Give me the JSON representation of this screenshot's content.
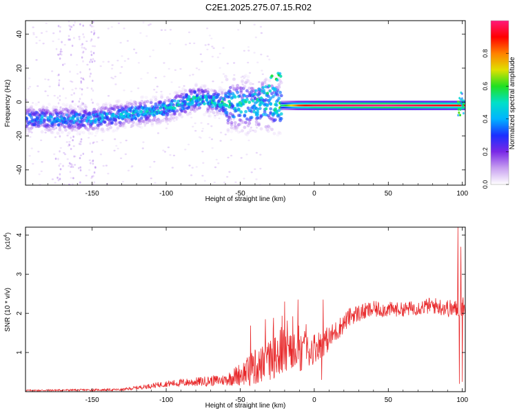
{
  "title": "C2E1.2025.275.07.15.R02",
  "chart_data": [
    {
      "type": "heatmap",
      "name": "spectrogram",
      "xlabel": "Height of straight line (km)",
      "ylabel": "Frequency (Hz)",
      "xlim": [
        -195,
        102
      ],
      "ylim": [
        -49,
        48
      ],
      "xticks": [
        -150,
        -100,
        -50,
        0,
        50,
        100
      ],
      "xtick_labels": [
        "-150",
        "-100",
        "-50",
        "0",
        "50",
        "100"
      ],
      "yticks": [
        -40,
        -20,
        0,
        20,
        40
      ],
      "ytick_labels": [
        "-40",
        "-20",
        "0",
        "20",
        "40"
      ],
      "ridge": [
        {
          "x": -195,
          "y": -10,
          "amp": 0.35
        },
        {
          "x": -150,
          "y": -10,
          "amp": 0.38
        },
        {
          "x": -100,
          "y": -4,
          "amp": 0.42
        },
        {
          "x": -80,
          "y": 2,
          "amp": 0.45
        },
        {
          "x": -50,
          "y": -2,
          "amp": 0.45
        },
        {
          "x": -30,
          "y": -2,
          "amp": 0.42
        },
        {
          "x": -20,
          "y": -2,
          "amp": 0.55
        },
        {
          "x": -10,
          "y": -2,
          "amp": 0.85
        },
        {
          "x": 0,
          "y": -2,
          "amp": 0.95
        },
        {
          "x": 50,
          "y": -2,
          "amp": 1.0
        },
        {
          "x": 98,
          "y": -2,
          "amp": 0.9
        }
      ],
      "colorbar": {
        "label": "Normalized spectral amplitude",
        "range": [
          0.0,
          1.0
        ],
        "ticks": [
          "0.0",
          "0.2",
          "0.4",
          "0.6",
          "0.8"
        ],
        "colors": [
          "#ffffff",
          "#c8a0f0",
          "#7a28e6",
          "#1a2fff",
          "#00b4ff",
          "#00e0c8",
          "#20e020",
          "#e0e000",
          "#ff8000",
          "#ff0000",
          "#ff1a7a"
        ]
      }
    },
    {
      "type": "line",
      "name": "snr",
      "xlabel": "Height of straight line (km)",
      "ylabel": "SNR (10 * v/v)",
      "multiplier": "(x10",
      "multiplier_exp": "4",
      "multiplier_close": ")",
      "xlim": [
        -195,
        102
      ],
      "ylim": [
        0,
        4.2
      ],
      "xticks": [
        -150,
        -100,
        -50,
        0,
        50,
        100
      ],
      "xtick_labels": [
        "-150",
        "-100",
        "-50",
        "0",
        "50",
        "100"
      ],
      "yticks": [
        1,
        2,
        3,
        4
      ],
      "ytick_labels": [
        "1",
        "2",
        "3",
        "4"
      ],
      "color": "#e8282a",
      "trend": [
        {
          "x": -195,
          "y": 0.03
        },
        {
          "x": -130,
          "y": 0.05
        },
        {
          "x": -100,
          "y": 0.2
        },
        {
          "x": -60,
          "y": 0.3
        },
        {
          "x": -40,
          "y": 0.6
        },
        {
          "x": -25,
          "y": 0.9
        },
        {
          "x": -10,
          "y": 0.9
        },
        {
          "x": 10,
          "y": 1.35
        },
        {
          "x": 25,
          "y": 1.95
        },
        {
          "x": 40,
          "y": 2.1
        },
        {
          "x": 60,
          "y": 2.1
        },
        {
          "x": 80,
          "y": 2.2
        },
        {
          "x": 95,
          "y": 2.1
        },
        {
          "x": 102,
          "y": 2.2
        }
      ],
      "noise": [
        {
          "x": -195,
          "amp": 0.02
        },
        {
          "x": -130,
          "amp": 0.03
        },
        {
          "x": -60,
          "amp": 0.15
        },
        {
          "x": -40,
          "amp": 0.45
        },
        {
          "x": -15,
          "amp": 0.6
        },
        {
          "x": 0,
          "amp": 0.4
        },
        {
          "x": 20,
          "amp": 0.25
        },
        {
          "x": 60,
          "amp": 0.18
        },
        {
          "x": 102,
          "amp": 0.25
        }
      ],
      "spikes": [
        {
          "x": -20,
          "y": 2.3
        },
        {
          "x": -11,
          "y": 2.35
        },
        {
          "x": 6,
          "y": 2.35
        },
        {
          "x": 5,
          "y": 0.3
        },
        {
          "x": 97,
          "y": 4.2
        },
        {
          "x": 98,
          "y": 0.2
        },
        {
          "x": 99,
          "y": 3.7
        },
        {
          "x": 100,
          "y": 0.25
        }
      ]
    }
  ]
}
